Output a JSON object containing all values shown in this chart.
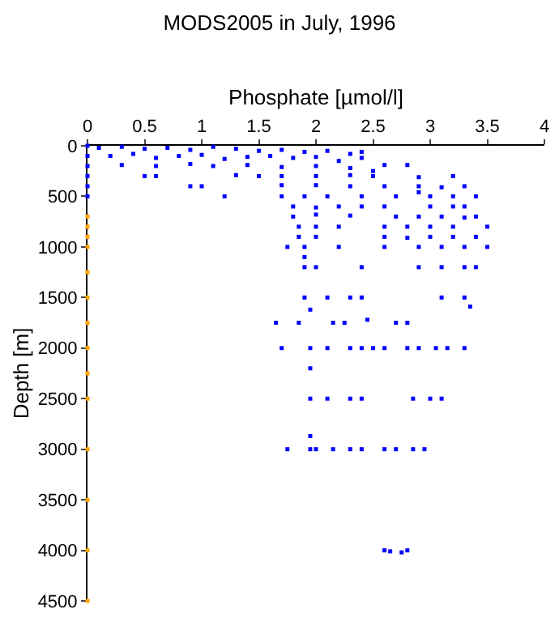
{
  "chart_data": {
    "type": "scatter",
    "title": "MODS2005 in July, 1996",
    "xlabel": "Phosphate [µmol/l]",
    "ylabel": "Depth [m]",
    "xlim": [
      0,
      4
    ],
    "xticks": [
      0,
      0.5,
      1,
      1.5,
      2,
      2.5,
      3,
      3.5,
      4
    ],
    "ylim": [
      4500,
      0
    ],
    "yticks": [
      0,
      500,
      1000,
      1500,
      2000,
      2500,
      3000,
      3500,
      4000,
      4500
    ],
    "marker": "square",
    "series": [
      {
        "color": "#0000ff",
        "x": [
          0,
          0.1,
          0.3,
          0.5,
          0.7,
          0.9,
          1.1,
          1.3,
          1.5,
          1.7,
          1.9,
          2.1,
          2.3,
          2.4,
          0.2,
          0.4,
          0.6,
          0.8,
          1.0,
          1.2,
          1.4,
          1.6,
          1.8,
          2.0,
          2.2,
          2.4,
          0.3,
          0.6,
          0.9,
          1.1,
          1.4,
          1.7,
          2.0,
          2.3,
          2.6,
          2.8,
          2.5,
          0.5,
          0.6,
          1.3,
          1.5,
          1.7,
          2.0,
          2.3,
          2.5,
          2.9,
          3.2,
          0.9,
          1.0,
          1.7,
          2.0,
          2.3,
          2.6,
          2.9,
          3.1,
          3.3,
          2.9,
          1.2,
          1.7,
          1.9,
          2.1,
          2.4,
          2.7,
          3.0,
          3.2,
          3.4,
          1.8,
          2.0,
          2.2,
          2.4,
          2.6,
          3.0,
          3.2,
          3.3,
          1.8,
          2.0,
          2.3,
          2.7,
          2.9,
          3.1,
          3.3,
          3.4,
          1.85,
          2.0,
          2.2,
          2.6,
          2.8,
          3.0,
          3.2,
          3.5,
          1.85,
          2.0,
          2.6,
          2.8,
          3.0,
          3.2,
          3.4,
          1.75,
          1.9,
          2.2,
          2.6,
          2.9,
          3.1,
          3.3,
          3.5,
          1.9,
          1.9,
          2.0,
          2.4,
          2.9,
          3.1,
          3.3,
          3.4,
          1.9,
          2.1,
          2.3,
          2.4,
          3.1,
          3.3,
          1.95,
          3.35,
          1.65,
          1.85,
          2.15,
          2.25,
          2.45,
          2.7,
          2.8,
          1.7,
          1.95,
          2.1,
          2.3,
          2.4,
          2.5,
          2.6,
          2.8,
          2.9,
          3.05,
          3.15,
          3.3,
          1.95,
          1.95,
          2.1,
          2.3,
          2.4,
          2.85,
          3.0,
          3.1,
          1.95,
          1.75,
          1.95,
          2.0,
          2.15,
          2.3,
          2.4,
          2.6,
          2.7,
          2.85,
          2.95,
          2.6,
          2.65,
          2.75,
          2.8,
          0,
          0,
          0,
          0,
          0
        ],
        "values": [
          0,
          20,
          10,
          30,
          20,
          40,
          10,
          30,
          50,
          40,
          60,
          50,
          80,
          60,
          100,
          80,
          120,
          100,
          90,
          130,
          110,
          100,
          120,
          110,
          150,
          120,
          190,
          200,
          180,
          200,
          190,
          210,
          200,
          220,
          190,
          190,
          250,
          300,
          300,
          290,
          300,
          300,
          300,
          290,
          300,
          310,
          300,
          400,
          400,
          390,
          390,
          400,
          400,
          400,
          410,
          400,
          460,
          500,
          500,
          500,
          500,
          500,
          500,
          500,
          500,
          500,
          600,
          610,
          600,
          600,
          600,
          600,
          600,
          600,
          700,
          680,
          690,
          700,
          700,
          700,
          710,
          700,
          800,
          800,
          800,
          800,
          800,
          800,
          800,
          800,
          900,
          900,
          900,
          910,
          900,
          900,
          900,
          1000,
          1000,
          1000,
          1000,
          1000,
          1000,
          1000,
          1000,
          1100,
          1200,
          1200,
          1200,
          1200,
          1200,
          1200,
          1200,
          1500,
          1500,
          1500,
          1500,
          1500,
          1500,
          1620,
          1590,
          1750,
          1750,
          1750,
          1750,
          1720,
          1750,
          1750,
          2000,
          2000,
          2000,
          2000,
          2000,
          2000,
          2000,
          2000,
          2000,
          2000,
          2000,
          2000,
          2200,
          2500,
          2500,
          2500,
          2500,
          2500,
          2500,
          2500,
          2870,
          3000,
          3000,
          3000,
          3000,
          3000,
          3000,
          3000,
          3000,
          3000,
          3000,
          4000,
          4010,
          4020,
          4000,
          100,
          200,
          300,
          400,
          500
        ]
      },
      {
        "color": "#ffa500",
        "x": [
          0,
          0,
          0,
          0,
          0,
          0,
          0,
          0,
          0,
          0,
          0,
          0,
          0,
          0
        ],
        "values": [
          700,
          800,
          900,
          1000,
          1250,
          1500,
          1750,
          2000,
          2250,
          2500,
          3000,
          3500,
          4000,
          4500
        ]
      }
    ]
  }
}
